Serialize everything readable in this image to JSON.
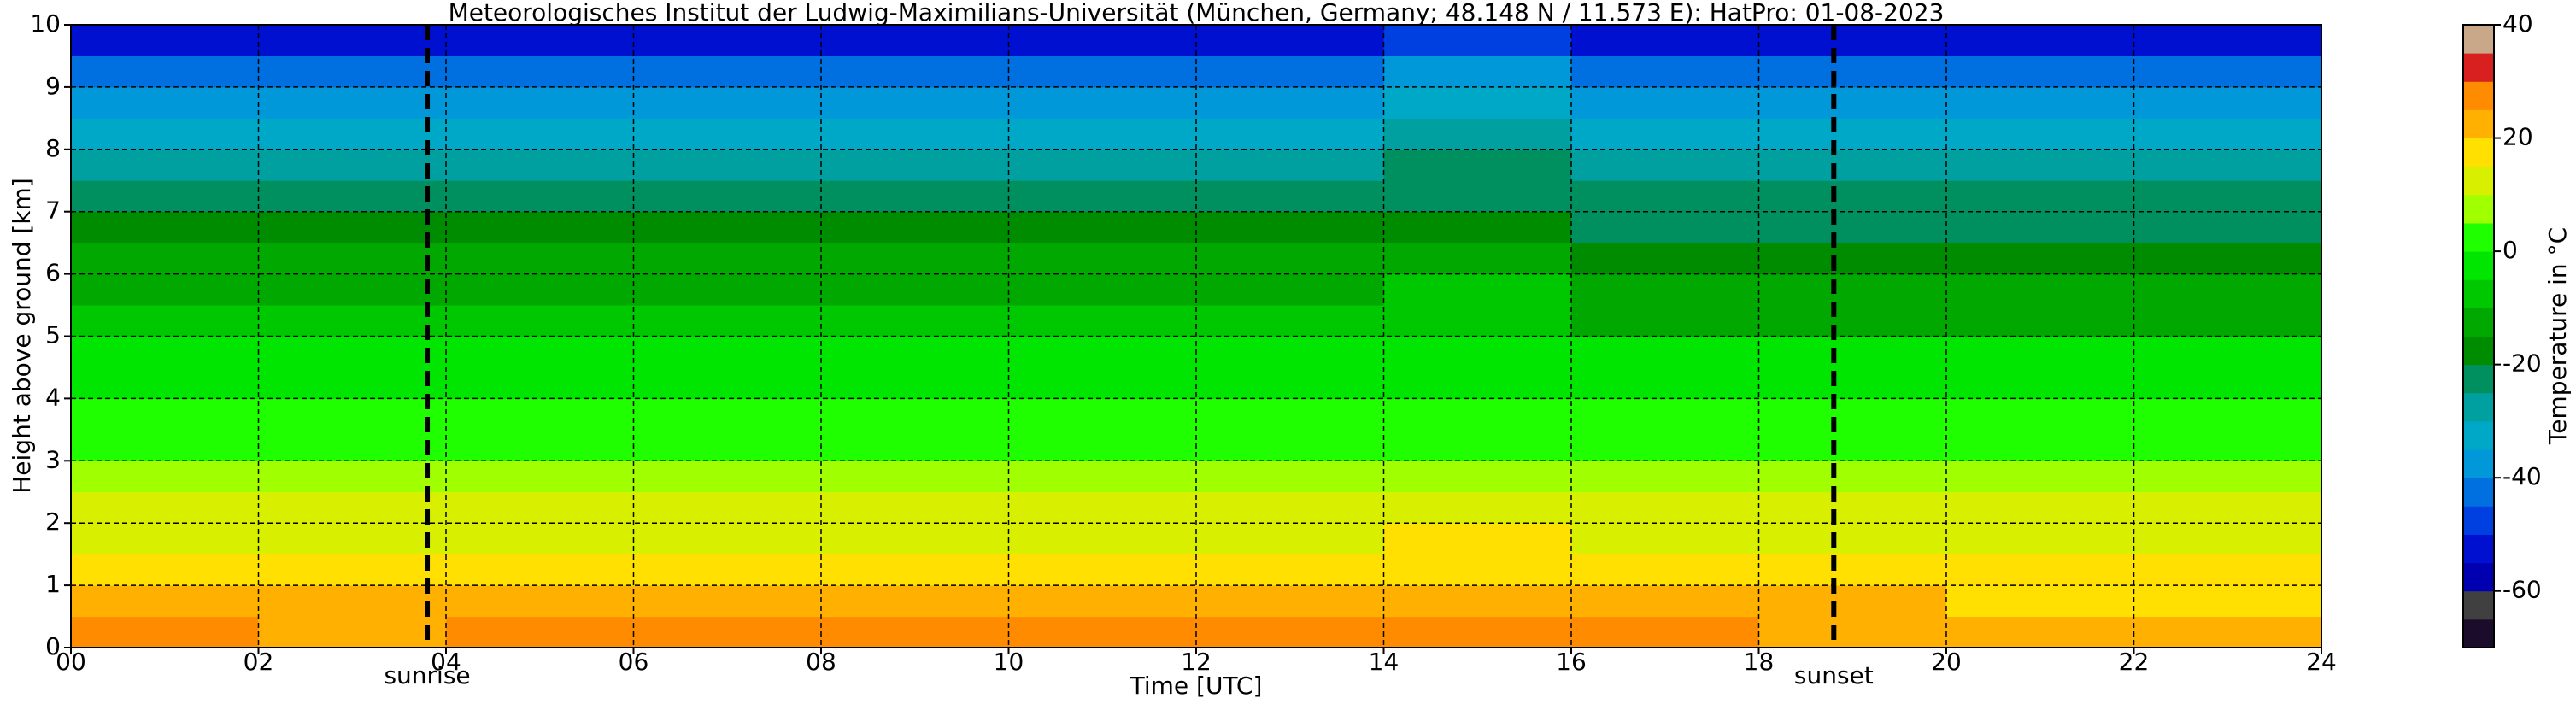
{
  "chart_data": {
    "type": "heatmap",
    "title": "Meteorologisches Institut der Ludwig-Maximilians-Universität (München, Germany; 48.148 N / 11.573 E):    HatPro: 01-08-2023",
    "xlabel": "Time [UTC]",
    "ylabel": "Height above ground [km]",
    "colorbar_label": "Temperature in °C",
    "x": [
      0,
      2,
      4,
      6,
      8,
      10,
      12,
      14,
      16,
      18,
      20,
      22,
      24
    ],
    "y": [
      0,
      0.5,
      1,
      1.5,
      2,
      2.5,
      3,
      3.5,
      4,
      4.5,
      5,
      5.5,
      6,
      6.5,
      7,
      7.5,
      8,
      8.5,
      9,
      9.5,
      10
    ],
    "z": [
      [
        25,
        24,
        25,
        26,
        26,
        26,
        26,
        27,
        25,
        24,
        23,
        23
      ],
      [
        21,
        20,
        21,
        22,
        22,
        22,
        22,
        23,
        21,
        20,
        19,
        19
      ],
      [
        17,
        16,
        17,
        18,
        18,
        18,
        18,
        19,
        17,
        16,
        15,
        15
      ],
      [
        14,
        14,
        14,
        14,
        14,
        14,
        14,
        15,
        14,
        14,
        14,
        14
      ],
      [
        11,
        11,
        11,
        11,
        11,
        11,
        11,
        12,
        11,
        11,
        11,
        11
      ],
      [
        8,
        8,
        8,
        8,
        8,
        8,
        8,
        9,
        8,
        8,
        8,
        8
      ],
      [
        4,
        4,
        4,
        4,
        4,
        4,
        4,
        5,
        4,
        4,
        4,
        4
      ],
      [
        1,
        1,
        1,
        1,
        1,
        1,
        1,
        2,
        1,
        1,
        1,
        1
      ],
      [
        -2,
        -2,
        -2,
        -2,
        -2,
        -2,
        -2,
        -1,
        -2,
        -2,
        -2,
        -2
      ],
      [
        -5,
        -5,
        -5,
        -5,
        -5,
        -5,
        -5,
        -4,
        -5,
        -5,
        -5,
        -5
      ],
      [
        -9,
        -9,
        -9,
        -9,
        -9,
        -9,
        -9,
        -7,
        -11,
        -11,
        -11,
        -11
      ],
      [
        -12,
        -12,
        -12,
        -12,
        -12,
        -12,
        -12,
        -10,
        -14,
        -14,
        -14,
        -14
      ],
      [
        -15,
        -15,
        -15,
        -15,
        -15,
        -15,
        -15,
        -13,
        -17,
        -17,
        -17,
        -17
      ],
      [
        -19,
        -19,
        -19,
        -19,
        -19,
        -19,
        -19,
        -17,
        -21,
        -21,
        -21,
        -21
      ],
      [
        -23,
        -23,
        -23,
        -23,
        -23,
        -23,
        -23,
        -21,
        -25,
        -25,
        -25,
        -25
      ],
      [
        -27,
        -27,
        -27,
        -27,
        -27,
        -27,
        -27,
        -25,
        -29,
        -29,
        -29,
        -29
      ],
      [
        -31,
        -31,
        -31,
        -31,
        -31,
        -31,
        -31,
        -29,
        -33,
        -33,
        -33,
        -33
      ],
      [
        -36,
        -36,
        -36,
        -36,
        -36,
        -36,
        -36,
        -34,
        -38,
        -38,
        -38,
        -38
      ],
      [
        -41,
        -41,
        -41,
        -41,
        -41,
        -41,
        -41,
        -39,
        -43,
        -43,
        -43,
        -43
      ],
      [
        -52,
        -52,
        -52,
        -52,
        -52,
        -52,
        -52,
        -48,
        -55,
        -55,
        -55,
        -55
      ]
    ],
    "xlim": [
      0,
      24
    ],
    "xticks": [
      {
        "value": 0,
        "label": "00"
      },
      {
        "value": 2,
        "label": "02"
      },
      {
        "value": 4,
        "label": "04"
      },
      {
        "value": 6,
        "label": "06"
      },
      {
        "value": 8,
        "label": "08"
      },
      {
        "value": 10,
        "label": "10"
      },
      {
        "value": 12,
        "label": "12"
      },
      {
        "value": 14,
        "label": "14"
      },
      {
        "value": 16,
        "label": "16"
      },
      {
        "value": 18,
        "label": "18"
      },
      {
        "value": 20,
        "label": "20"
      },
      {
        "value": 22,
        "label": "22"
      },
      {
        "value": 24,
        "label": "24"
      }
    ],
    "ylim": [
      0,
      10
    ],
    "yticks": [
      0,
      1,
      2,
      3,
      4,
      5,
      6,
      7,
      8,
      9,
      10
    ],
    "zlim": [
      -70,
      40
    ],
    "zticks": [
      -60,
      -40,
      -20,
      0,
      20,
      40
    ],
    "colors": [
      "#1c0c2c",
      "#404040",
      "#0000b0",
      "#0010d0",
      "#0040e0",
      "#0070e0",
      "#0098d8",
      "#00a8c8",
      "#00a0a0",
      "#009060",
      "#008c00",
      "#00a800",
      "#00c800",
      "#00e600",
      "#20ff00",
      "#a0ff00",
      "#d8f000",
      "#ffe000",
      "#ffb000",
      "#ff8c00",
      "#d82020",
      "#c8a888"
    ],
    "grid": true,
    "annotations": [
      {
        "x": 3.8,
        "label": "sunrise"
      },
      {
        "x": 18.8,
        "label": "sunset"
      }
    ]
  }
}
